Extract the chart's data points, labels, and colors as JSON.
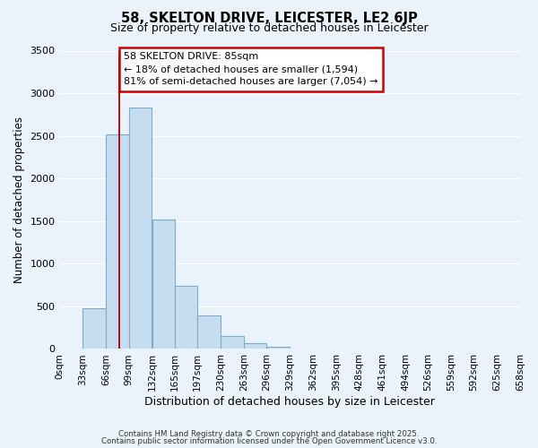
{
  "title": "58, SKELTON DRIVE, LEICESTER, LE2 6JP",
  "subtitle": "Size of property relative to detached houses in Leicester",
  "xlabel": "Distribution of detached houses by size in Leicester",
  "ylabel": "Number of detached properties",
  "bin_labels": [
    "0sqm",
    "33sqm",
    "66sqm",
    "99sqm",
    "132sqm",
    "165sqm",
    "197sqm",
    "230sqm",
    "263sqm",
    "296sqm",
    "329sqm",
    "362sqm",
    "395sqm",
    "428sqm",
    "461sqm",
    "494sqm",
    "526sqm",
    "559sqm",
    "592sqm",
    "625sqm",
    "658sqm"
  ],
  "bin_edges": [
    0,
    33,
    66,
    99,
    132,
    165,
    197,
    230,
    263,
    296,
    329,
    362,
    395,
    428,
    461,
    494,
    526,
    559,
    592,
    625,
    658
  ],
  "bar_heights": [
    0,
    475,
    2520,
    2830,
    1520,
    745,
    395,
    155,
    65,
    30,
    5,
    0,
    0,
    0,
    0,
    0,
    0,
    0,
    0,
    0
  ],
  "bar_color": "#c6dcef",
  "bar_edgecolor": "#7aaecc",
  "ylim": [
    0,
    3500
  ],
  "yticks": [
    0,
    500,
    1000,
    1500,
    2000,
    2500,
    3000,
    3500
  ],
  "property_line_x": 85,
  "annotation_title": "58 SKELTON DRIVE: 85sqm",
  "annotation_line1": "← 18% of detached houses are smaller (1,594)",
  "annotation_line2": "81% of semi-detached houses are larger (7,054) →",
  "footer1": "Contains HM Land Registry data © Crown copyright and database right 2025.",
  "footer2": "Contains public sector information licensed under the Open Government Licence v3.0.",
  "background_color": "#eaf3fb",
  "grid_color": "#ffffff",
  "spine_color": "#b0c8d8"
}
